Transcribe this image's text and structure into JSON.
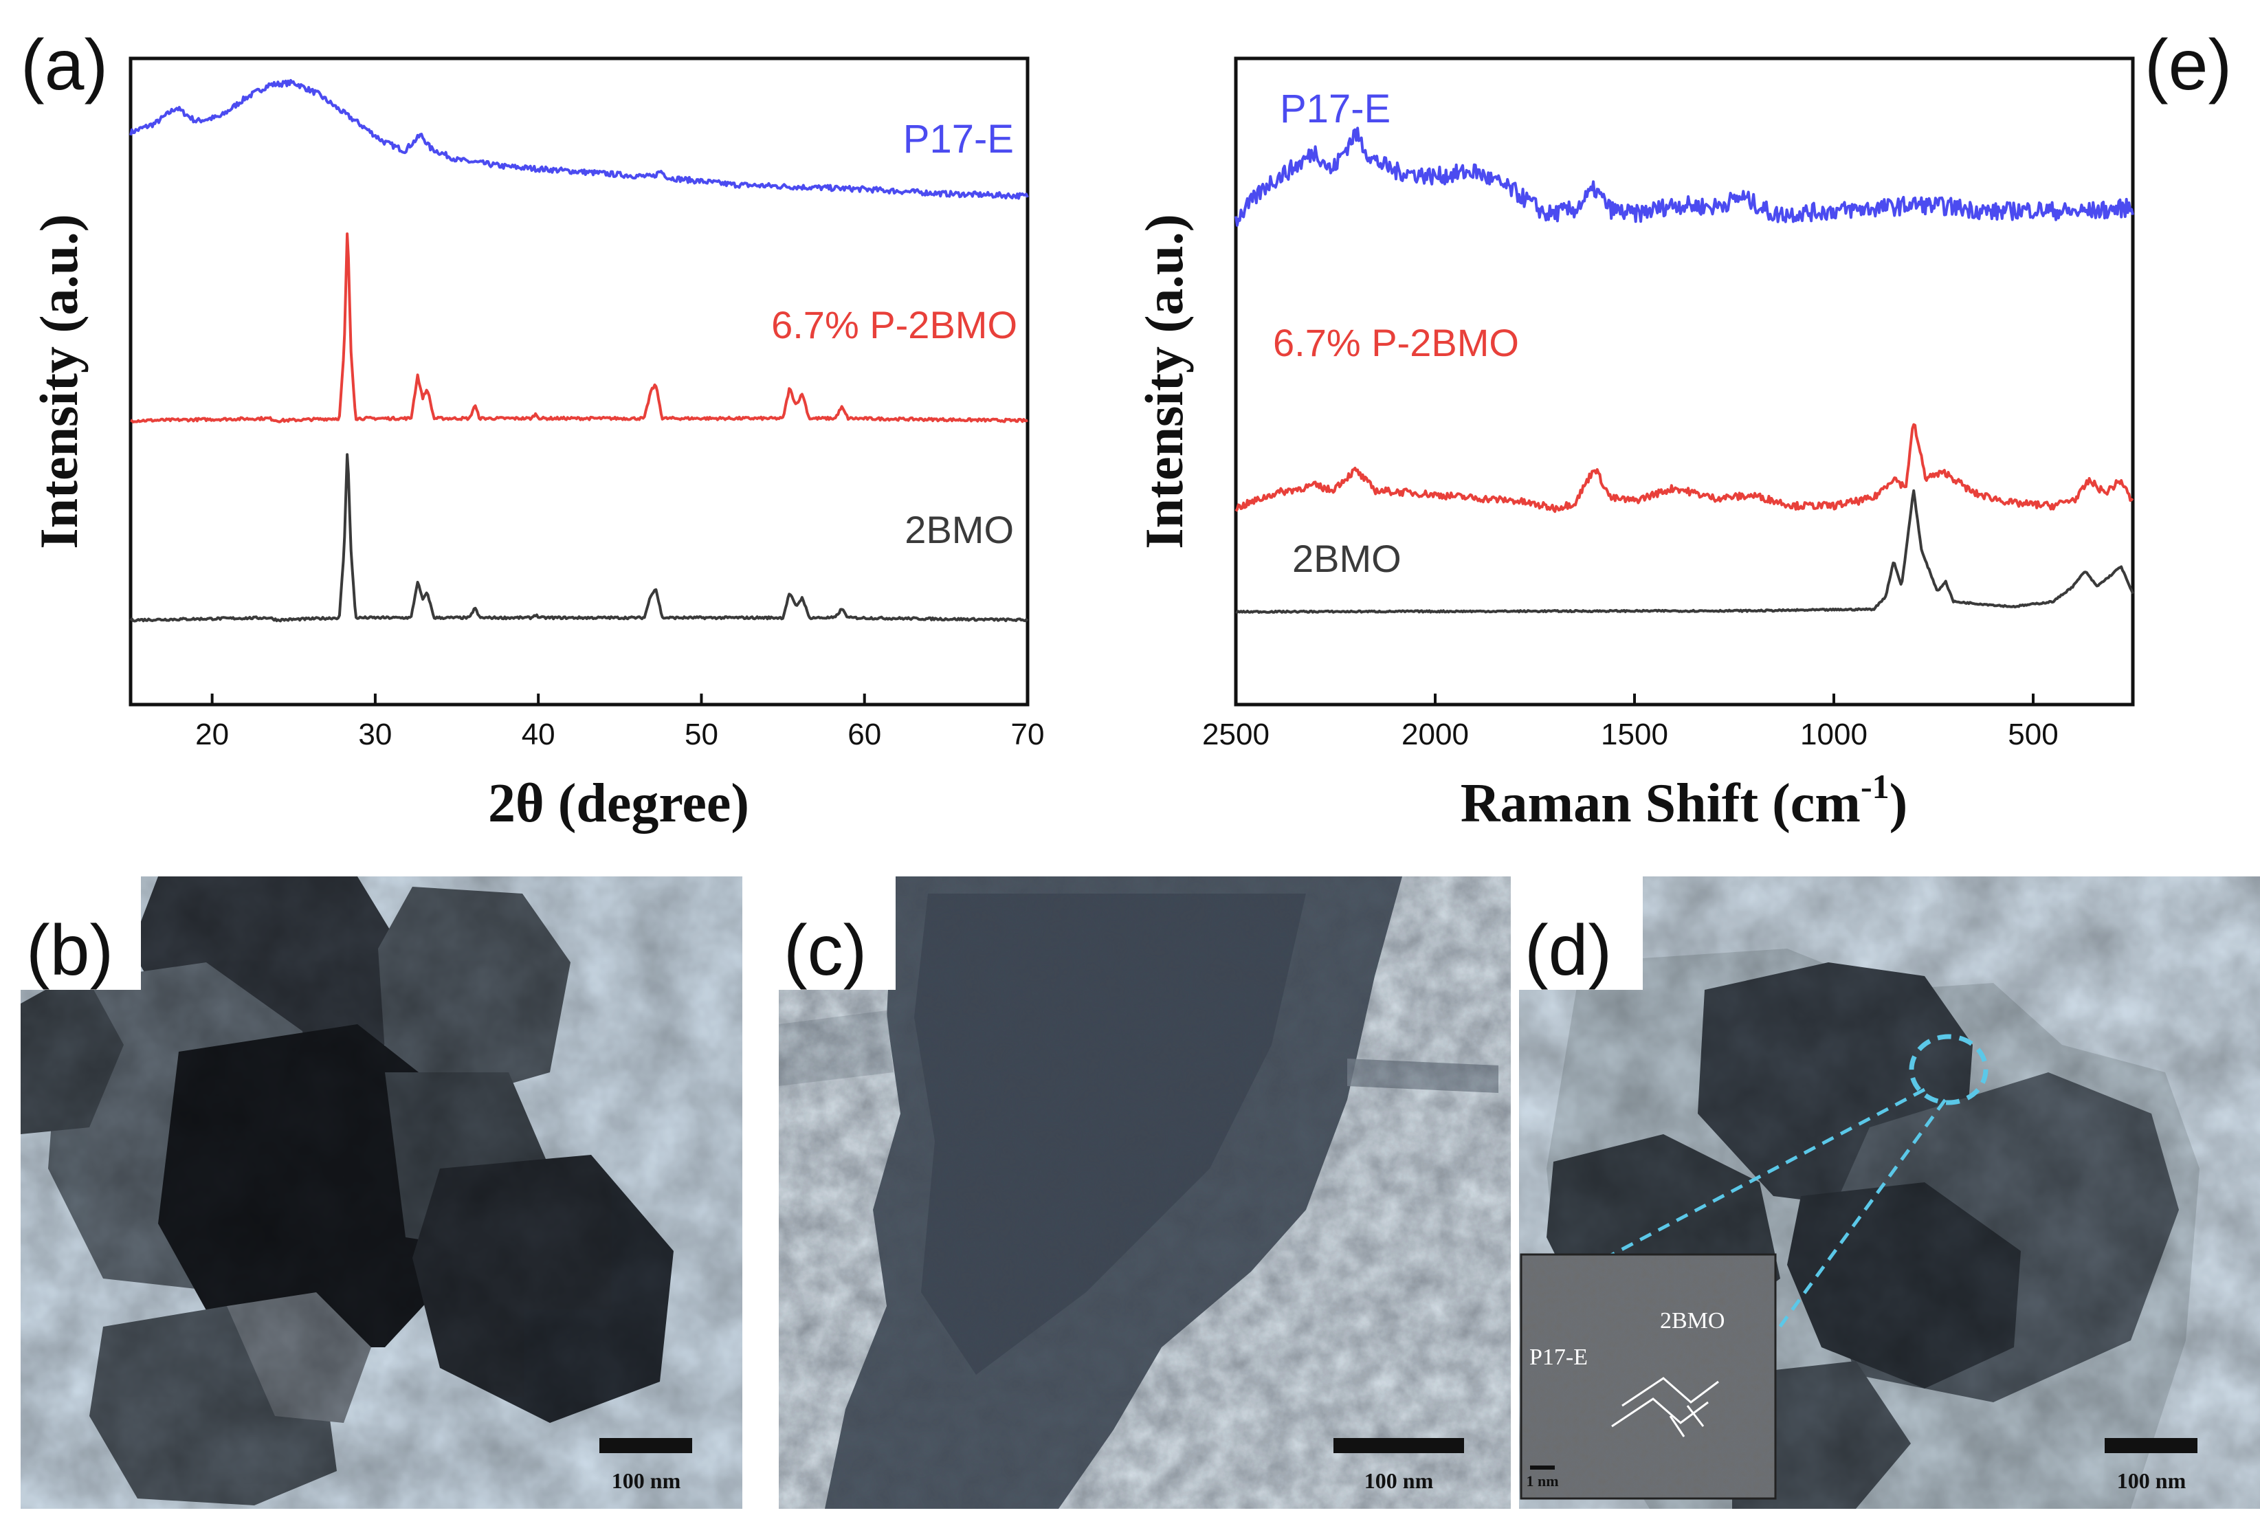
{
  "chart_data": [
    {
      "panel": "(a)",
      "type": "line",
      "xlabel": "2θ (degree)",
      "ylabel": "Intensity (a.u.)",
      "xlim": [
        15,
        70
      ],
      "xticks": [
        20,
        30,
        40,
        50,
        60,
        70
      ],
      "y_units": "arbitrary, vertically offset",
      "series": [
        {
          "name": "P17-E",
          "color": "#4b4bf0",
          "points": [
            [
              15,
              7.2
            ],
            [
              16.5,
              7.4
            ],
            [
              17.8,
              7.75
            ],
            [
              19,
              7.45
            ],
            [
              20.5,
              7.55
            ],
            [
              22,
              7.95
            ],
            [
              23.5,
              8.25
            ],
            [
              25,
              8.3
            ],
            [
              26.5,
              8.05
            ],
            [
              28,
              7.65
            ],
            [
              29,
              7.4
            ],
            [
              30.5,
              7.0
            ],
            [
              31.8,
              6.8
            ],
            [
              32.8,
              7.15
            ],
            [
              33.4,
              6.85
            ],
            [
              35,
              6.6
            ],
            [
              38,
              6.45
            ],
            [
              42,
              6.35
            ],
            [
              47,
              6.22
            ],
            [
              47.5,
              6.35
            ],
            [
              48,
              6.2
            ],
            [
              52,
              6.05
            ],
            [
              56,
              6.0
            ],
            [
              60,
              5.95
            ],
            [
              65,
              5.85
            ],
            [
              70,
              5.8
            ]
          ]
        },
        {
          "name": "6.7% P-2BMO",
          "color": "#e8403a",
          "points": [
            [
              15,
              0.0
            ],
            [
              23.5,
              0.05
            ],
            [
              24,
              0.0
            ],
            [
              27.8,
              0.05
            ],
            [
              28.1,
              1.6
            ],
            [
              28.3,
              4.4
            ],
            [
              28.5,
              1.6
            ],
            [
              28.8,
              0.05
            ],
            [
              32.2,
              0.05
            ],
            [
              32.6,
              1.0
            ],
            [
              32.9,
              0.5
            ],
            [
              33.2,
              0.7
            ],
            [
              33.6,
              0.05
            ],
            [
              35.8,
              0.05
            ],
            [
              36.1,
              0.35
            ],
            [
              36.4,
              0.05
            ],
            [
              39.6,
              0.05
            ],
            [
              39.8,
              0.15
            ],
            [
              40.1,
              0.05
            ],
            [
              46.5,
              0.05
            ],
            [
              46.9,
              0.65
            ],
            [
              47.2,
              0.8
            ],
            [
              47.6,
              0.05
            ],
            [
              55,
              0.05
            ],
            [
              55.4,
              0.72
            ],
            [
              55.8,
              0.35
            ],
            [
              56.2,
              0.6
            ],
            [
              56.6,
              0.05
            ],
            [
              58.2,
              0.05
            ],
            [
              58.6,
              0.3
            ],
            [
              59,
              0.05
            ],
            [
              70,
              0.0
            ]
          ]
        },
        {
          "name": "2BMO",
          "color": "#3a3a3a",
          "points": [
            [
              15,
              0.0
            ],
            [
              23.5,
              0.05
            ],
            [
              24,
              0.0
            ],
            [
              27.8,
              0.05
            ],
            [
              28.1,
              1.6
            ],
            [
              28.3,
              3.9
            ],
            [
              28.5,
              1.6
            ],
            [
              28.8,
              0.05
            ],
            [
              32.2,
              0.05
            ],
            [
              32.6,
              0.85
            ],
            [
              32.9,
              0.45
            ],
            [
              33.2,
              0.6
            ],
            [
              33.6,
              0.05
            ],
            [
              35.8,
              0.05
            ],
            [
              36.1,
              0.28
            ],
            [
              36.4,
              0.05
            ],
            [
              39.6,
              0.05
            ],
            [
              39.8,
              0.12
            ],
            [
              40.1,
              0.05
            ],
            [
              46.5,
              0.05
            ],
            [
              46.9,
              0.55
            ],
            [
              47.2,
              0.7
            ],
            [
              47.6,
              0.05
            ],
            [
              55,
              0.05
            ],
            [
              55.4,
              0.6
            ],
            [
              55.8,
              0.3
            ],
            [
              56.2,
              0.5
            ],
            [
              56.6,
              0.05
            ],
            [
              58.2,
              0.05
            ],
            [
              58.6,
              0.25
            ],
            [
              59,
              0.05
            ],
            [
              70,
              0.0
            ]
          ]
        }
      ]
    },
    {
      "panel": "(e)",
      "type": "line",
      "xlabel": "Raman Shift (cm",
      "xlabel_superscript": "-1",
      "xlabel_close": ")",
      "ylabel": "Intensity (a.u.)",
      "xlim": [
        2500,
        250
      ],
      "x_reversed": true,
      "xticks": [
        2500,
        2000,
        1500,
        1000,
        500
      ],
      "y_units": "arbitrary, vertically offset",
      "series": [
        {
          "name": "P17-E",
          "color": "#4b4bf0",
          "points": [
            [
              2500,
              4.6
            ],
            [
              2420,
              5.3
            ],
            [
              2340,
              5.7
            ],
            [
              2300,
              5.95
            ],
            [
              2260,
              5.55
            ],
            [
              2200,
              6.3
            ],
            [
              2160,
              5.8
            ],
            [
              2100,
              5.55
            ],
            [
              2000,
              5.45
            ],
            [
              1900,
              5.55
            ],
            [
              1800,
              5.15
            ],
            [
              1720,
              4.7
            ],
            [
              1650,
              4.8
            ],
            [
              1600,
              5.2
            ],
            [
              1560,
              4.8
            ],
            [
              1500,
              4.7
            ],
            [
              1400,
              4.9
            ],
            [
              1300,
              4.85
            ],
            [
              1230,
              5.05
            ],
            [
              1150,
              4.7
            ],
            [
              1050,
              4.75
            ],
            [
              950,
              4.8
            ],
            [
              850,
              4.85
            ],
            [
              800,
              4.9
            ],
            [
              700,
              4.85
            ],
            [
              600,
              4.75
            ],
            [
              500,
              4.8
            ],
            [
              400,
              4.75
            ],
            [
              300,
              4.8
            ],
            [
              250,
              4.85
            ]
          ]
        },
        {
          "name": "6.7% P-2BMO",
          "color": "#e8403a",
          "points": [
            [
              2500,
              1.9
            ],
            [
              2400,
              2.2
            ],
            [
              2300,
              2.35
            ],
            [
              2260,
              2.25
            ],
            [
              2200,
              2.65
            ],
            [
              2150,
              2.25
            ],
            [
              2050,
              2.2
            ],
            [
              1900,
              2.1
            ],
            [
              1800,
              2.05
            ],
            [
              1700,
              1.9
            ],
            [
              1650,
              2.0
            ],
            [
              1600,
              2.7
            ],
            [
              1560,
              2.1
            ],
            [
              1500,
              2.05
            ],
            [
              1400,
              2.3
            ],
            [
              1300,
              2.1
            ],
            [
              1200,
              2.15
            ],
            [
              1100,
              1.95
            ],
            [
              1000,
              1.95
            ],
            [
              900,
              2.1
            ],
            [
              850,
              2.5
            ],
            [
              820,
              2.3
            ],
            [
              800,
              3.6
            ],
            [
              770,
              2.5
            ],
            [
              720,
              2.6
            ],
            [
              650,
              2.2
            ],
            [
              550,
              2.0
            ],
            [
              450,
              1.95
            ],
            [
              390,
              2.1
            ],
            [
              360,
              2.45
            ],
            [
              320,
              2.2
            ],
            [
              280,
              2.45
            ],
            [
              250,
              2.0
            ]
          ]
        },
        {
          "name": "2BMO",
          "color": "#3a3a3a",
          "points": [
            [
              2500,
              0.0
            ],
            [
              1200,
              0.02
            ],
            [
              900,
              0.05
            ],
            [
              870,
              0.3
            ],
            [
              850,
              1.0
            ],
            [
              830,
              0.5
            ],
            [
              800,
              2.4
            ],
            [
              780,
              1.2
            ],
            [
              740,
              0.4
            ],
            [
              720,
              0.6
            ],
            [
              700,
              0.2
            ],
            [
              550,
              0.1
            ],
            [
              450,
              0.2
            ],
            [
              400,
              0.5
            ],
            [
              370,
              0.8
            ],
            [
              340,
              0.5
            ],
            [
              300,
              0.75
            ],
            [
              280,
              0.9
            ],
            [
              250,
              0.35
            ]
          ]
        }
      ]
    }
  ],
  "panel_a": {
    "label": "(a)",
    "series_labels": [
      "P17-E",
      "6.7% P-2BMO",
      "2BMO"
    ]
  },
  "panel_e": {
    "label": "(e)",
    "series_labels": [
      "P17-E",
      "6.7% P-2BMO",
      "2BMO"
    ]
  },
  "panel_b": {
    "label": "(b)",
    "scale_bar": "100 nm"
  },
  "panel_c": {
    "label": "(c)",
    "scale_bar": "100 nm"
  },
  "panel_d": {
    "label": "(d)",
    "scale_bar": "100 nm",
    "inset_scale_bar": "1 nm",
    "inset_labels": [
      "P17-E",
      "2BMO"
    ]
  },
  "colors": {
    "blue": "#4b4bf0",
    "red": "#e8403a",
    "black": "#3a3a3a",
    "tem_background": "#d6e4f0",
    "highlight_circle": "#5bc8e8"
  }
}
